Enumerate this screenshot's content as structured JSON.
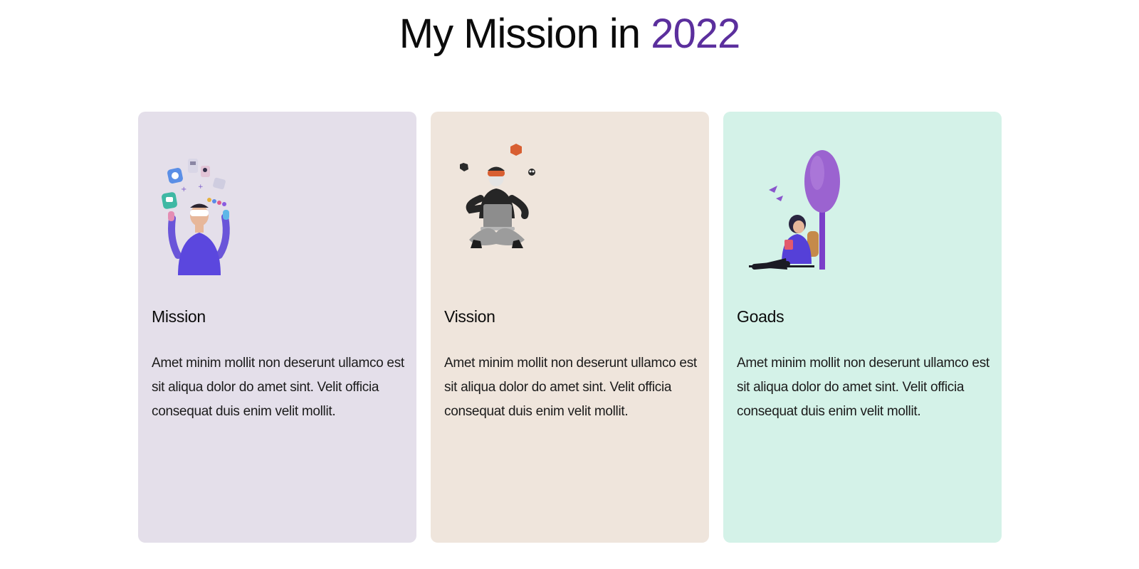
{
  "heading": {
    "prefix": "My Mission in",
    "year": "2022"
  },
  "colors": {
    "accent": "#5b2f9d",
    "card_mission_bg": "#e4dfea",
    "card_vission_bg": "#efe5dc",
    "card_goads_bg": "#d4f2e8"
  },
  "cards": [
    {
      "icon": "person-juggling-apps-icon",
      "title": "Mission",
      "text": "Amet minim mollit non deserunt ullamco est sit aliqua dolor do amet sint. Velit officia consequat duis enim velit mollit."
    },
    {
      "icon": "person-vr-laptop-icon",
      "title": "Vission",
      "text": "Amet minim mollit non deserunt ullamco est sit aliqua dolor do amet sint. Velit officia consequat duis enim velit mollit."
    },
    {
      "icon": "person-reading-tree-icon",
      "title": "Goads",
      "text": "Amet minim mollit non deserunt ullamco est sit aliqua dolor do amet sint. Velit officia consequat duis enim velit mollit."
    }
  ]
}
